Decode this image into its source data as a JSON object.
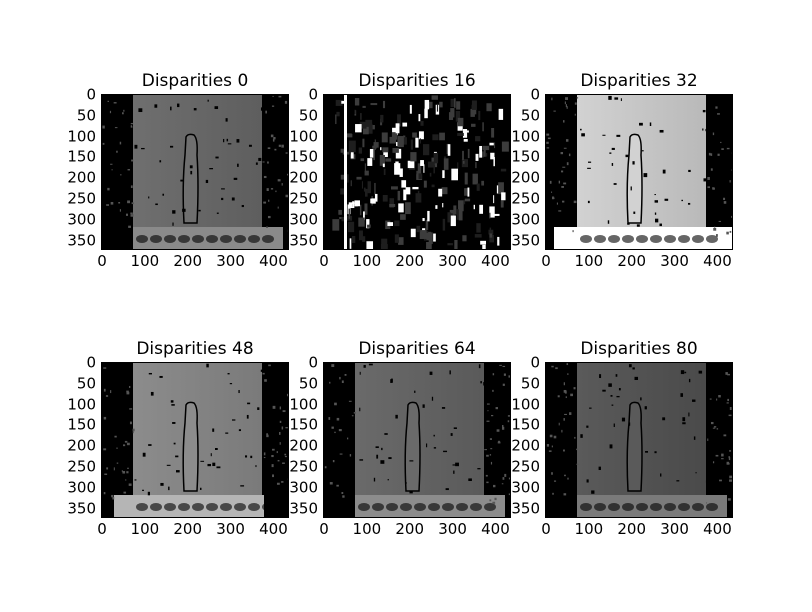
{
  "figure": {
    "panels": [
      {
        "title": "Disparities 0",
        "style": "gray",
        "wall": "#6f6f6f",
        "wall_dark": "#5e5e5e",
        "base": "#8a8a8a"
      },
      {
        "title": "Disparities 16",
        "style": "noisy",
        "wall": "#1a1a1a",
        "wall_dark": "#0a0a0a",
        "base": "#ffffff"
      },
      {
        "title": "Disparities 32",
        "style": "light",
        "wall": "#d2d2d2",
        "wall_dark": "#b9b9b9",
        "base": "#ffffff"
      },
      {
        "title": "Disparities 48",
        "style": "gray",
        "wall": "#8c8c8c",
        "wall_dark": "#7a7a7a",
        "base": "#b5b5b5"
      },
      {
        "title": "Disparities 64",
        "style": "gray",
        "wall": "#6a6a6a",
        "wall_dark": "#5a5a5a",
        "base": "#8c8c8c"
      },
      {
        "title": "Disparities 80",
        "style": "dark",
        "wall": "#5a5a5a",
        "wall_dark": "#4a4a4a",
        "base": "#7a7a7a"
      }
    ],
    "yticks": [
      "0",
      "50",
      "100",
      "150",
      "200",
      "250",
      "300",
      "350"
    ],
    "xticks": [
      "0",
      "100",
      "200",
      "300",
      "400"
    ]
  }
}
